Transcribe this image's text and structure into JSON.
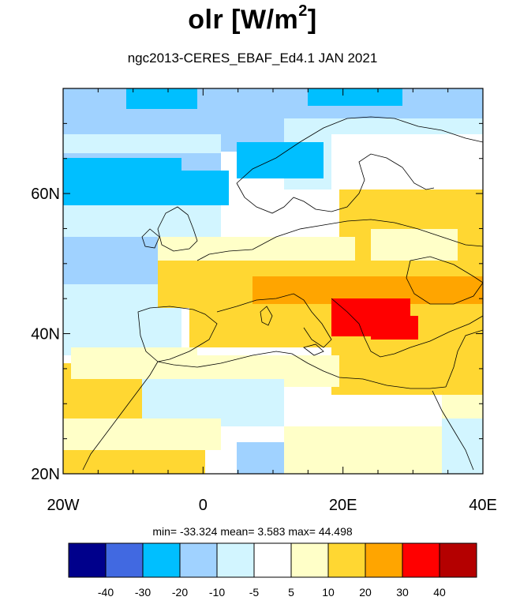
{
  "title": {
    "main": "olr [W/m",
    "sup": "2",
    "close": "]"
  },
  "subtitle": "ngc2013-CERES_EBAF_Ed4.1  JAN 2021",
  "stats": "min= -33.324  mean=   3.583  max=  44.498",
  "map": {
    "lon_range": [
      -20,
      40
    ],
    "lat_range": [
      20,
      75
    ],
    "x_ticks": [
      {
        "value": -20,
        "label": "20W"
      },
      {
        "value": 0,
        "label": "0"
      },
      {
        "value": 20,
        "label": "20E"
      },
      {
        "value": 40,
        "label": "40E"
      }
    ],
    "y_ticks": [
      {
        "value": 20,
        "label": "20N"
      },
      {
        "value": 40,
        "label": "40N"
      },
      {
        "value": 60,
        "label": "60N"
      }
    ]
  },
  "colorbar": {
    "colors": [
      "#00008b",
      "#4169e1",
      "#00bfff",
      "#a0d2ff",
      "#d2f5ff",
      "#ffffff",
      "#ffffc8",
      "#ffd732",
      "#ffa500",
      "#ff0000",
      "#b40000"
    ],
    "labels": [
      "-40",
      "-30",
      "-20",
      "-10",
      "-5",
      "5",
      "10",
      "20",
      "30",
      "40"
    ]
  }
}
